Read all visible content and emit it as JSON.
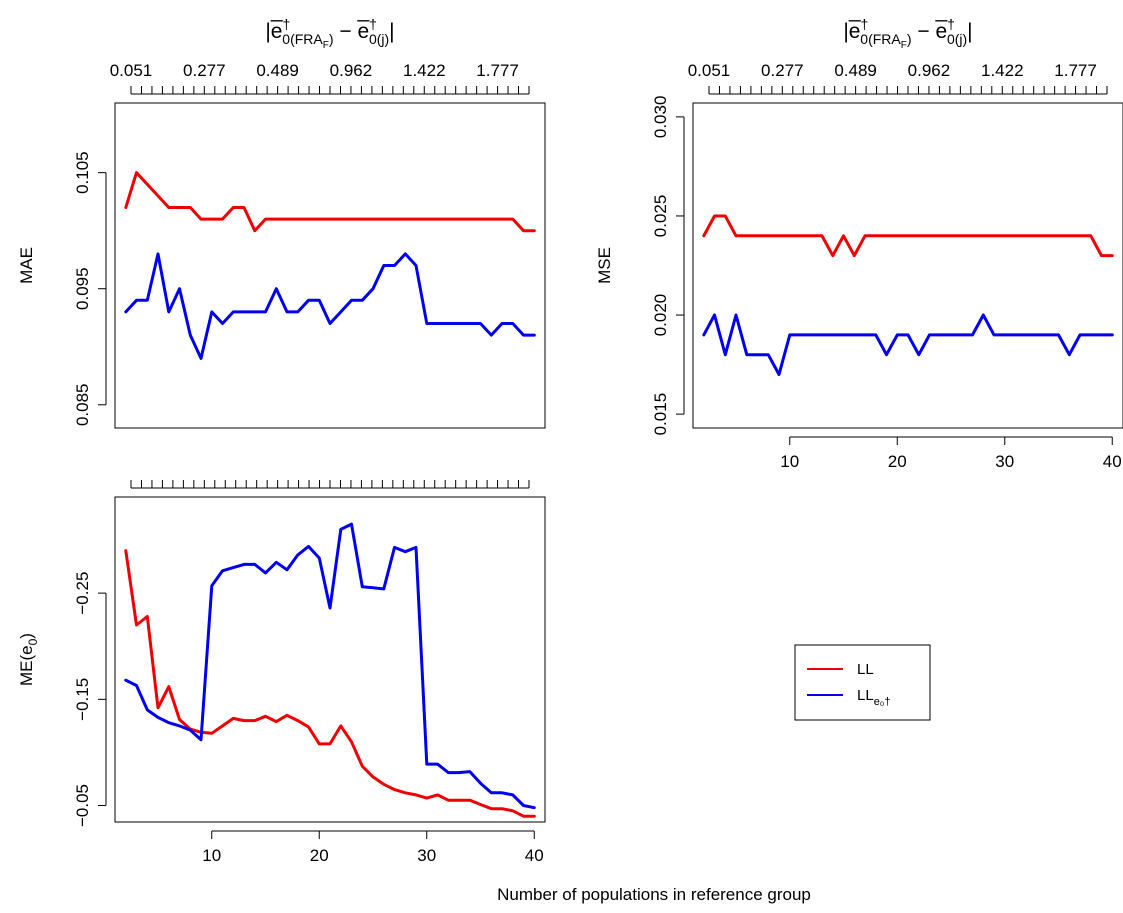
{
  "figure": {
    "xlabel": "Number of populations in reference group",
    "legend": {
      "position": "right-middle",
      "entries": [
        {
          "label": "LL",
          "color": "#ee0000"
        },
        {
          "label": "LL",
          "subscript": "e₀†",
          "color": "#0000ee"
        }
      ]
    },
    "top_axis_title": {
      "before_sub": "|e̅",
      "sub_a": "0(FRA",
      "sub_a_sub": "F",
      "sub_a_end": ")",
      "dagger": "†",
      "minus": " − e̅",
      "sub_b": "0(j)",
      "end": "|"
    }
  },
  "chart_data": [
    {
      "type": "line",
      "panel": "MAE",
      "ylabel": "MAE",
      "ylim": [
        0.083,
        0.111
      ],
      "yticks": [
        "0.085",
        "0.095",
        "0.105"
      ],
      "ytick_values": [
        0.085,
        0.095,
        0.105
      ],
      "xlim": [
        1,
        41
      ],
      "show_bottom_axis": false,
      "top_ticks": 39,
      "top_labels": [
        "0.051",
        "0.277",
        "0.489",
        "0.962",
        "1.422",
        "1.777"
      ],
      "show_top_title": true,
      "x": [
        2,
        3,
        4,
        5,
        6,
        7,
        8,
        9,
        10,
        11,
        12,
        13,
        14,
        15,
        16,
        17,
        18,
        19,
        20,
        21,
        22,
        23,
        24,
        25,
        26,
        27,
        28,
        29,
        30,
        31,
        32,
        33,
        34,
        35,
        36,
        37,
        38,
        39,
        40
      ],
      "series": [
        {
          "name": "LL",
          "color": "#ee0000",
          "values": [
            0.102,
            0.105,
            0.104,
            0.103,
            0.102,
            0.102,
            0.102,
            0.101,
            0.101,
            0.101,
            0.102,
            0.102,
            0.1,
            0.101,
            0.101,
            0.101,
            0.101,
            0.101,
            0.101,
            0.101,
            0.101,
            0.101,
            0.101,
            0.101,
            0.101,
            0.101,
            0.101,
            0.101,
            0.101,
            0.101,
            0.101,
            0.101,
            0.101,
            0.101,
            0.101,
            0.101,
            0.101,
            0.1,
            0.1
          ]
        },
        {
          "name": "LLe0",
          "color": "#0000ee",
          "values": [
            0.093,
            0.094,
            0.094,
            0.098,
            0.093,
            0.095,
            0.091,
            0.089,
            0.093,
            0.092,
            0.093,
            0.093,
            0.093,
            0.093,
            0.095,
            0.093,
            0.093,
            0.094,
            0.094,
            0.092,
            0.093,
            0.094,
            0.094,
            0.095,
            0.097,
            0.097,
            0.098,
            0.097,
            0.092,
            0.092,
            0.092,
            0.092,
            0.092,
            0.092,
            0.091,
            0.092,
            0.092,
            0.091,
            0.091
          ]
        }
      ]
    },
    {
      "type": "line",
      "panel": "MSE",
      "ylabel": "MSE",
      "ylim": [
        0.0143,
        0.0307
      ],
      "yticks": [
        "0.015",
        "0.020",
        "0.025",
        "0.030"
      ],
      "ytick_values": [
        0.015,
        0.02,
        0.025,
        0.03
      ],
      "xlim": [
        1,
        41
      ],
      "show_bottom_axis": true,
      "xticks": [
        "10",
        "20",
        "30",
        "40"
      ],
      "xtick_values": [
        10,
        20,
        30,
        40
      ],
      "top_ticks": 39,
      "top_labels": [
        "0.051",
        "0.277",
        "0.489",
        "0.962",
        "1.422",
        "1.777"
      ],
      "show_top_title": true,
      "x": [
        2,
        3,
        4,
        5,
        6,
        7,
        8,
        9,
        10,
        11,
        12,
        13,
        14,
        15,
        16,
        17,
        18,
        19,
        20,
        21,
        22,
        23,
        24,
        25,
        26,
        27,
        28,
        29,
        30,
        31,
        32,
        33,
        34,
        35,
        36,
        37,
        38,
        39,
        40
      ],
      "series": [
        {
          "name": "LL",
          "color": "#ee0000",
          "values": [
            0.024,
            0.025,
            0.025,
            0.024,
            0.024,
            0.024,
            0.024,
            0.024,
            0.024,
            0.024,
            0.024,
            0.024,
            0.023,
            0.024,
            0.023,
            0.024,
            0.024,
            0.024,
            0.024,
            0.024,
            0.024,
            0.024,
            0.024,
            0.024,
            0.024,
            0.024,
            0.024,
            0.024,
            0.024,
            0.024,
            0.024,
            0.024,
            0.024,
            0.024,
            0.024,
            0.024,
            0.024,
            0.023,
            0.023
          ]
        },
        {
          "name": "LLe0",
          "color": "#0000ee",
          "values": [
            0.019,
            0.02,
            0.018,
            0.02,
            0.018,
            0.018,
            0.018,
            0.017,
            0.019,
            0.019,
            0.019,
            0.019,
            0.019,
            0.019,
            0.019,
            0.019,
            0.019,
            0.018,
            0.019,
            0.019,
            0.018,
            0.019,
            0.019,
            0.019,
            0.019,
            0.019,
            0.02,
            0.019,
            0.019,
            0.019,
            0.019,
            0.019,
            0.019,
            0.019,
            0.018,
            0.019,
            0.019,
            0.019,
            0.019
          ]
        }
      ]
    },
    {
      "type": "line",
      "panel": "ME",
      "ylabel": "ME(e0)",
      "ylabel_main": "ME(e",
      "ylabel_sub": "0",
      "ylabel_end": ")",
      "ylim": [
        -0.0345,
        -0.3405
      ],
      "yticks": [
        "−0.05",
        "−0.15",
        "−0.25"
      ],
      "ytick_values": [
        -0.05,
        -0.15,
        -0.25
      ],
      "xlim": [
        1,
        41
      ],
      "show_bottom_axis": true,
      "xticks": [
        "10",
        "20",
        "30",
        "40"
      ],
      "xtick_values": [
        10,
        20,
        30,
        40
      ],
      "top_ticks": 39,
      "top_labels": [],
      "show_top_title": false,
      "x": [
        2,
        3,
        4,
        5,
        6,
        7,
        8,
        9,
        10,
        11,
        12,
        13,
        14,
        15,
        16,
        17,
        18,
        19,
        20,
        21,
        22,
        23,
        24,
        25,
        26,
        27,
        28,
        29,
        30,
        31,
        32,
        33,
        34,
        35,
        36,
        37,
        38,
        39,
        40
      ],
      "series": [
        {
          "name": "LL",
          "color": "#ee0000",
          "values": [
            -0.29,
            -0.22,
            -0.228,
            -0.142,
            -0.162,
            -0.131,
            -0.122,
            -0.119,
            -0.118,
            -0.125,
            -0.132,
            -0.13,
            -0.13,
            -0.134,
            -0.129,
            -0.135,
            -0.13,
            -0.124,
            -0.108,
            -0.108,
            -0.125,
            -0.11,
            -0.087,
            -0.077,
            -0.07,
            -0.065,
            -0.062,
            -0.06,
            -0.057,
            -0.06,
            -0.055,
            -0.055,
            -0.055,
            -0.051,
            -0.047,
            -0.047,
            -0.045,
            -0.04,
            -0.04
          ]
        },
        {
          "name": "LLe0",
          "color": "#0000ee",
          "values": [
            -0.168,
            -0.163,
            -0.14,
            -0.133,
            -0.128,
            -0.125,
            -0.121,
            -0.112,
            -0.257,
            -0.271,
            -0.274,
            -0.277,
            -0.277,
            -0.269,
            -0.279,
            -0.272,
            -0.286,
            -0.294,
            -0.283,
            -0.236,
            -0.31,
            -0.315,
            -0.256,
            -0.255,
            -0.254,
            -0.293,
            -0.289,
            -0.293,
            -0.089,
            -0.089,
            -0.081,
            -0.081,
            -0.082,
            -0.071,
            -0.062,
            -0.062,
            -0.06,
            -0.05,
            -0.048
          ]
        }
      ]
    }
  ]
}
